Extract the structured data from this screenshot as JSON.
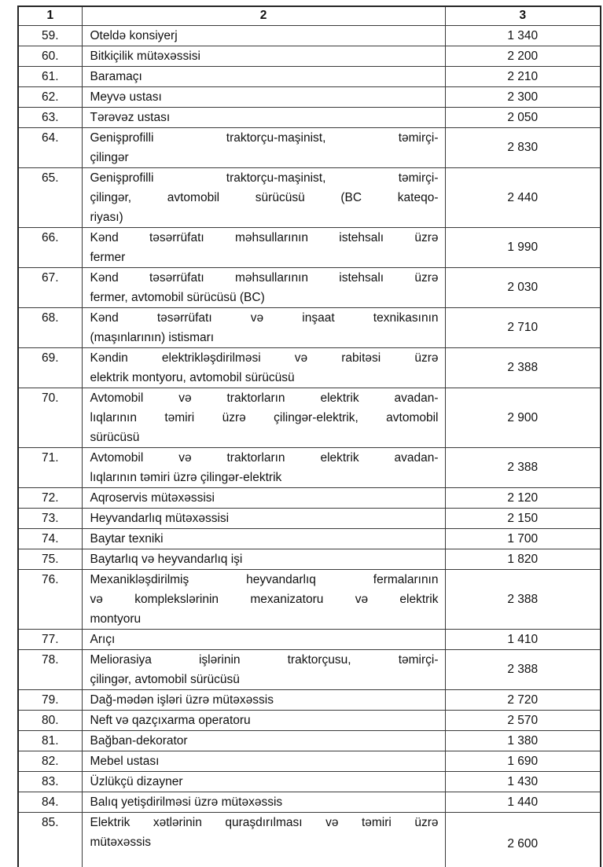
{
  "table": {
    "headers": [
      "1",
      "2",
      "3"
    ],
    "rows": [
      {
        "num": "59.",
        "name_lines": [
          "Oteldə konsiyerj"
        ],
        "value": "1 340"
      },
      {
        "num": "60.",
        "name_lines": [
          "Bitkiçilik mütəxəssisi"
        ],
        "value": "2 200"
      },
      {
        "num": "61.",
        "name_lines": [
          "Baramaçı"
        ],
        "value": "2 210"
      },
      {
        "num": "62.",
        "name_lines": [
          "Meyvə ustası"
        ],
        "value": "2 300"
      },
      {
        "num": "63.",
        "name_lines": [
          "Tərəvəz ustası"
        ],
        "value": "2 050"
      },
      {
        "num": "64.",
        "name_lines": [
          "Genişprofilli traktorçu-maşinist, təmirçi-",
          "çilingər"
        ],
        "value": "2 830"
      },
      {
        "num": "65.",
        "name_lines": [
          "Genişprofilli traktorçu-maşinist, təmirçi-",
          "çilingər, avtomobil sürücüsü (BC kateqo-",
          "riyası)"
        ],
        "value": "2 440"
      },
      {
        "num": "66.",
        "name_lines": [
          "Kənd təsərrüfatı məhsullarının istehsalı üzrə",
          "fermer"
        ],
        "value": "1 990"
      },
      {
        "num": "67.",
        "name_lines": [
          "Kənd təsərrüfatı məhsullarının istehsalı üzrə",
          "fermer, avtomobil sürücüsü (BC)"
        ],
        "value": "2 030"
      },
      {
        "num": "68.",
        "name_lines": [
          "Kənd təsərrüfatı və inşaat texnikasının",
          "(maşınlarının) istismarı"
        ],
        "value": "2 710"
      },
      {
        "num": "69.",
        "name_lines": [
          "Kəndin elektrikləşdirilməsi və rabitəsi üzrə",
          "elektrik montyoru, avtomobil sürücüsü"
        ],
        "value": "2 388"
      },
      {
        "num": "70.",
        "name_lines": [
          "Avtomobil və traktorların elektrik avadan-",
          "lıqlarının təmiri üzrə çilingər-elektrik, avtomobil",
          "sürücüsü"
        ],
        "value": "2 900"
      },
      {
        "num": "71.",
        "name_lines": [
          "Avtomobil və traktorların elektrik avadan-",
          "lıqlarının təmiri üzrə çilingər-elektrik"
        ],
        "value": "2 388"
      },
      {
        "num": "72.",
        "name_lines": [
          "Aqroservis mütəxəssisi"
        ],
        "value": "2 120"
      },
      {
        "num": "73.",
        "name_lines": [
          "Heyvandarlıq mütəxəssisi"
        ],
        "value": "2 150"
      },
      {
        "num": "74.",
        "name_lines": [
          "Baytar texniki"
        ],
        "value": "1 700"
      },
      {
        "num": "75.",
        "name_lines": [
          "Baytarlıq və heyvandarlıq işi"
        ],
        "value": "1 820"
      },
      {
        "num": "76.",
        "name_lines": [
          "Mexanikləşdirilmiş heyvandarlıq fermalarının",
          "və komplekslərinin mexanizatoru və elektrik",
          "montyoru"
        ],
        "value": "2 388"
      },
      {
        "num": "77.",
        "name_lines": [
          "Arıçı"
        ],
        "value": "1 410"
      },
      {
        "num": "78.",
        "name_lines": [
          "Meliorasiya işlərinin traktorçusu, təmirçi-",
          "çilingər, avtomobil sürücüsü"
        ],
        "value": "2 388"
      },
      {
        "num": "79.",
        "name_lines": [
          "Dağ-mədən işləri üzrə mütəxəssis"
        ],
        "value": "2 720"
      },
      {
        "num": "80.",
        "name_lines": [
          "Neft və qazçıxarma operatoru"
        ],
        "value": "2 570"
      },
      {
        "num": "81.",
        "name_lines": [
          "Bağban-dekorator"
        ],
        "value": "1 380"
      },
      {
        "num": "82.",
        "name_lines": [
          "Mebel ustası"
        ],
        "value": "1 690"
      },
      {
        "num": "83.",
        "name_lines": [
          "Üzlükçü dizayner"
        ],
        "value": "1 430"
      },
      {
        "num": "84.",
        "name_lines": [
          "Balıq yetişdirilməsi üzrə mütəxəssis"
        ],
        "value": "1 440"
      },
      {
        "num": "85.",
        "name_lines": [
          "Elektrik xətlərinin quraşdırılması və təmiri üzrə",
          "mütəxəssis"
        ],
        "value": "2 600",
        "cut": true
      }
    ]
  },
  "colors": {
    "border_inner": "#3a3a3a",
    "border_outer": "#262626",
    "text": "#111111",
    "background": "#ffffff"
  }
}
